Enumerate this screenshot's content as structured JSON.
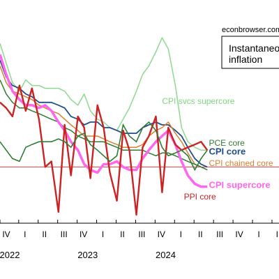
{
  "chart_data": {
    "type": "line",
    "title": "Instantaneous inflation",
    "source": "econbrowser.com",
    "x": [
      2021.92,
      2022.0,
      2022.08,
      2022.17,
      2022.25,
      2022.33,
      2022.42,
      2022.5,
      2022.58,
      2022.67,
      2022.75,
      2022.83,
      2022.92,
      2023.0,
      2023.08,
      2023.17,
      2023.25,
      2023.33,
      2023.42,
      2023.5,
      2023.58,
      2023.67,
      2023.75,
      2023.83,
      2023.92,
      2024.0,
      2024.08,
      2024.17,
      2024.25,
      2024.33,
      2024.42,
      2024.5,
      2024.58
    ],
    "quarter_ticks": [
      {
        "x": 2021.92,
        "label": "IV"
      },
      {
        "x": 2022.16,
        "label": "I"
      },
      {
        "x": 2022.41,
        "label": "II"
      },
      {
        "x": 2022.66,
        "label": "III"
      },
      {
        "x": 2022.91,
        "label": "IV"
      },
      {
        "x": 2023.16,
        "label": "I"
      },
      {
        "x": 2023.41,
        "label": "II"
      },
      {
        "x": 2023.66,
        "label": "III"
      },
      {
        "x": 2023.91,
        "label": "IV"
      },
      {
        "x": 2024.16,
        "label": "I"
      },
      {
        "x": 2024.41,
        "label": "II"
      },
      {
        "x": 2024.66,
        "label": "III"
      },
      {
        "x": 2024.91,
        "label": "IV"
      },
      {
        "x": 2025.16,
        "label": "I"
      },
      {
        "x": 2025.41,
        "label": "II"
      }
    ],
    "year_labels": [
      {
        "x": 2021.92,
        "label": "2022"
      },
      {
        "x": 2022.92,
        "label": "2023"
      },
      {
        "x": 2023.92,
        "label": "2024"
      }
    ],
    "xlim": [
      2021.92,
      2025.5
    ],
    "ylim": [
      0,
      7
    ],
    "grid": false,
    "reference_line": {
      "y": 2,
      "color": "#d44040"
    },
    "series": [
      {
        "name": "CPI svcs supercore",
        "color": "#8fd88f",
        "label_color": "#7ed77e",
        "label_x": 2024.0,
        "label_y": 4.25,
        "label_size": 12,
        "label_weight": "normal",
        "values": [
          6.4,
          5.7,
          5.0,
          4.7,
          5.1,
          4.9,
          4.9,
          4.8,
          4.8,
          4.8,
          4.7,
          4.4,
          4.2,
          4.6,
          4.0,
          3.7,
          3.6,
          3.4,
          3.3,
          3.7,
          4.1,
          4.7,
          5.3,
          5.6,
          6.1,
          6.6,
          6.2,
          4.9,
          3.4,
          2.9,
          2.7,
          2.6,
          2.6
        ]
      },
      {
        "name": "CPI core",
        "color": "#1f4e8c",
        "label_color": "#1f4e8c",
        "label_x": 2024.6,
        "label_y": 2.45,
        "label_size": 13,
        "label_weight": "bold",
        "values": [
          5.8,
          5.2,
          4.9,
          4.8,
          4.6,
          4.5,
          4.3,
          4.3,
          4.3,
          4.2,
          4.1,
          3.8,
          3.7,
          3.5,
          3.6,
          3.6,
          3.4,
          3.4,
          3.3,
          3.2,
          3.2,
          3.2,
          3.4,
          3.5,
          3.6,
          3.5,
          3.5,
          3.3,
          3.1,
          2.7,
          2.3,
          2.1,
          2.0
        ]
      },
      {
        "name": "CPI chained core",
        "color": "#d9802f",
        "label_color": "#d9802f",
        "label_x": 2024.6,
        "label_y": 2.03,
        "label_size": 12,
        "label_weight": "normal",
        "values": [
          5.6,
          5.0,
          4.7,
          4.6,
          4.5,
          4.4,
          4.2,
          4.1,
          4.0,
          3.9,
          3.7,
          3.5,
          3.3,
          3.1,
          3.1,
          3.1,
          3.0,
          2.9,
          2.8,
          2.7,
          2.7,
          2.7,
          2.8,
          3.1,
          3.3,
          3.4,
          3.6,
          3.2,
          2.9,
          2.5,
          2.1,
          2.0,
          1.9
        ]
      },
      {
        "name": "PCE core",
        "color": "#2e7d32",
        "label_color": "#2e7d32",
        "label_x": 2024.6,
        "label_y": 2.75,
        "label_size": 12,
        "label_weight": "normal",
        "values": [
          5.1,
          4.6,
          4.3,
          4.1,
          4.1,
          4.0,
          3.9,
          3.8,
          3.7,
          3.6,
          3.4,
          3.3,
          3.1,
          3.0,
          2.9,
          2.9,
          2.9,
          2.8,
          2.7,
          2.6,
          2.6,
          2.6,
          2.6,
          2.5,
          2.4,
          2.5,
          2.5,
          2.4,
          2.3,
          2.2,
          2.1,
          2.0,
          1.9
        ]
      },
      {
        "name": "CPI supercore",
        "color": "#ff66ee",
        "label_color": "#ff66ee",
        "label_x": 2024.6,
        "label_y": 1.25,
        "label_size": 13,
        "label_weight": "bold",
        "values": [
          6.0,
          5.3,
          4.7,
          4.4,
          4.2,
          4.2,
          4.1,
          4.2,
          4.0,
          3.6,
          3.3,
          2.9,
          2.6,
          2.1,
          1.9,
          1.8,
          2.1,
          2.1,
          2.2,
          2.0,
          1.9,
          1.9,
          2.3,
          2.6,
          2.9,
          3.1,
          3.3,
          2.8,
          2.2,
          1.7,
          1.4,
          1.3,
          1.3
        ]
      },
      {
        "name": "PPI core",
        "color": "#cc2222",
        "label_color": "#cc2222",
        "label_x": 2024.28,
        "label_y": 0.85,
        "label_size": 12,
        "label_weight": "normal",
        "values": [
          4.3,
          4.1,
          3.8,
          4.9,
          4.0,
          4.8,
          3.7,
          2.0,
          2.2,
          0.4,
          3.5,
          1.7,
          3.8,
          3.4,
          1.6,
          4.2,
          3.4,
          1.8,
          0.8,
          3.3,
          2.6,
          0.3,
          2.7,
          3.1,
          3.8,
          1.1,
          3.4,
          2.8,
          2.6,
          2.7,
          2.8,
          2.9,
          2.6
        ]
      }
    ],
    "right_line": {
      "color": "#2e7d32",
      "values": [
        2.9,
        2.6,
        2.3,
        2.2,
        2.7,
        2.8,
        2.9,
        2.9,
        2.9,
        3.0,
        2.9,
        2.7,
        3.1,
        3.2,
        2.8,
        2.6,
        2.4,
        2.2,
        2.4,
        3.5,
        3.1,
        2.9,
        3.4,
        3.6,
        3.3,
        2.7,
        2.4,
        2.5,
        2.6,
        2.4,
        1.9,
        2.3,
        2.6
      ]
    }
  }
}
